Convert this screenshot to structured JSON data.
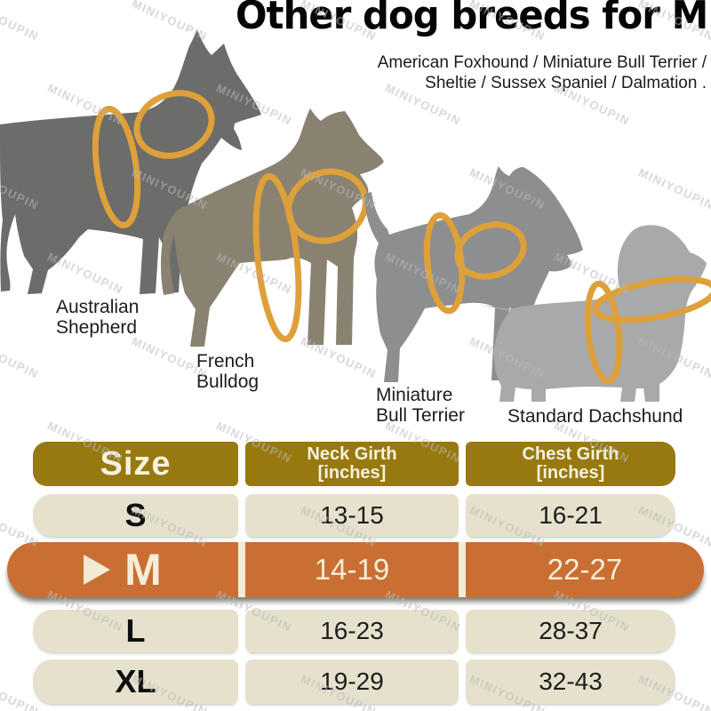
{
  "title": "Other dog breeds for M",
  "subtitle": {
    "line1": "American Foxhound / Miniature Bull Terrier /",
    "line2": "Sheltie / Sussex Spaniel / Dalmation ."
  },
  "watermark": {
    "text": "MINIYOUPIN"
  },
  "selected_size": "M",
  "harness_ring_color": "#DEA039",
  "dogs": [
    {
      "name": "Australian Shepherd",
      "label_line1": "Australian",
      "label_line2": "Shepherd",
      "color": "#6C6C6A"
    },
    {
      "name": "French Bulldog",
      "label_line1": "French",
      "label_line2": "Bulldog",
      "color": "#8A8271"
    },
    {
      "name": "Miniature Bull Terrier",
      "label_line1": "Miniature",
      "label_line2": "Bull Terrier",
      "color": "#8C8E90"
    },
    {
      "name": "Standard Dachshund",
      "label_line1": "Standard Dachshund",
      "color": "#A7A9AB"
    }
  ],
  "size_table": {
    "columns": [
      "Size",
      "Neck Girth [inches]",
      "Chest Girth [inches]"
    ],
    "header": {
      "size": "Size",
      "neck_line1": "Neck Girth",
      "neck_line2": "[inches]",
      "chest_line1": "Chest Girth",
      "chest_line2": "[inches]"
    },
    "rows": [
      {
        "size": "S",
        "neck": "13-15",
        "chest": "16-21",
        "highlighted": false
      },
      {
        "size": "M",
        "neck": "14-19",
        "chest": "22-27",
        "highlighted": true
      },
      {
        "size": "L",
        "neck": "16-23",
        "chest": "28-37",
        "highlighted": false
      },
      {
        "size": "XL",
        "neck": "19-29",
        "chest": "32-43",
        "highlighted": false
      }
    ],
    "colors": {
      "header_bg": "#97790F",
      "header_text": "#F7F2DF",
      "row_bg": "#E6E1CC",
      "row_text": "#1D1D1D",
      "highlight_bg": "#C96F33",
      "highlight_text": "#F6EDD9"
    }
  }
}
